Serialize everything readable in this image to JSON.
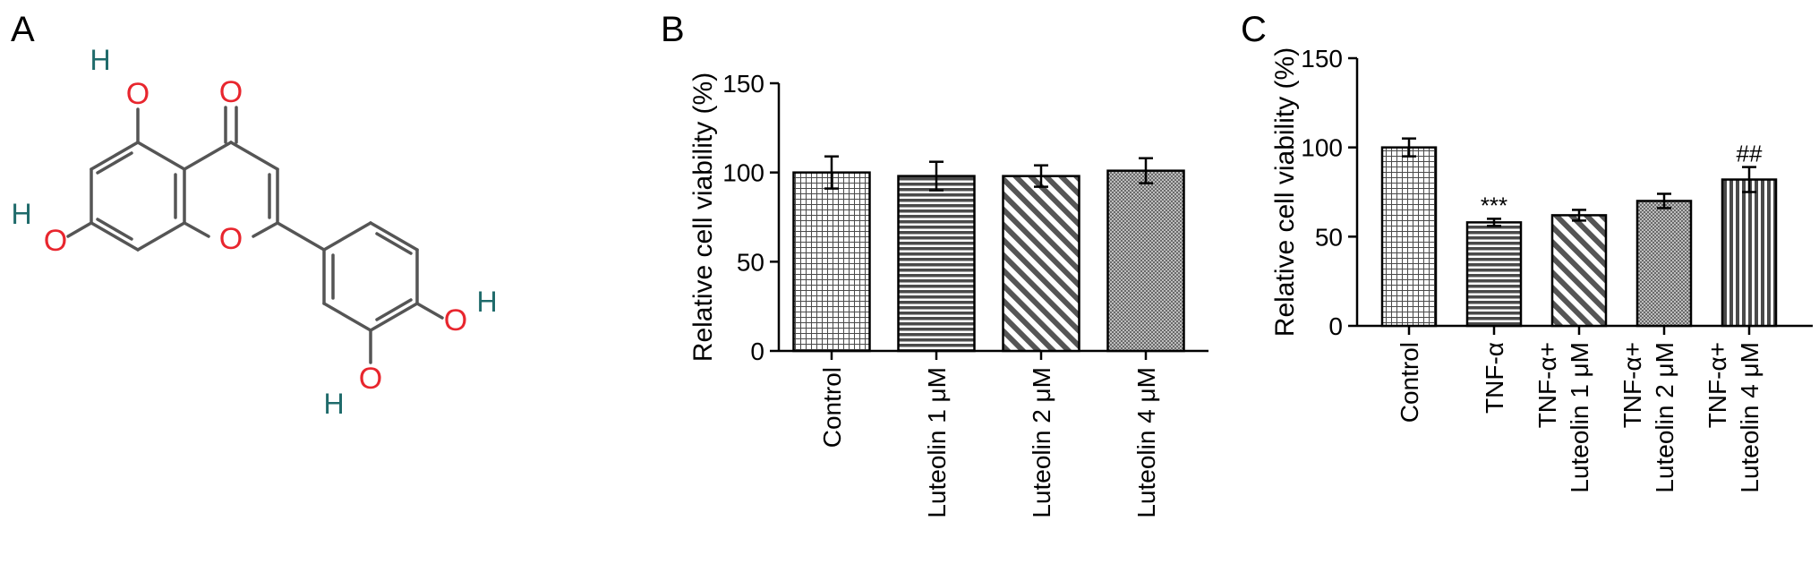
{
  "panels": {
    "a": {
      "letter": "A"
    },
    "b": {
      "letter": "B"
    },
    "c": {
      "letter": "C"
    }
  },
  "molecule": {
    "atoms": [
      {
        "element": "O",
        "symbol": "O"
      },
      {
        "element": "O",
        "symbol": "O"
      },
      {
        "element": "O",
        "symbol": "O"
      },
      {
        "element": "O",
        "symbol": "O"
      },
      {
        "element": "O",
        "symbol": "O"
      },
      {
        "element": "O",
        "symbol": "O"
      },
      {
        "element": "H",
        "symbol": "H"
      },
      {
        "element": "H",
        "symbol": "H"
      },
      {
        "element": "H",
        "symbol": "H"
      },
      {
        "element": "H",
        "symbol": "H"
      }
    ],
    "colors": {
      "oxygen": "#e8262e",
      "hydrogen": "#1f6b6b",
      "bond": "#555555"
    }
  },
  "chart_data": [
    {
      "panel": "B",
      "type": "bar",
      "ylabel": "Relative cell viability (%)",
      "xlabel": "",
      "ylim": [
        0,
        150
      ],
      "yticks": [
        "0",
        "50",
        "100",
        "150"
      ],
      "categories": [
        {
          "lines": [
            "Control"
          ]
        },
        {
          "lines": [
            "Luteolin 1 μM"
          ]
        },
        {
          "lines": [
            "Luteolin 2 μM"
          ]
        },
        {
          "lines": [
            "Luteolin 4 μM"
          ]
        }
      ],
      "values": [
        100,
        98,
        98,
        101
      ],
      "errors": [
        9,
        8,
        6,
        7
      ],
      "patterns": [
        "grid",
        "hstripe",
        "diag",
        "dots"
      ],
      "annotations": [
        "",
        "",
        "",
        ""
      ],
      "grid": false,
      "legend": "none"
    },
    {
      "panel": "C",
      "type": "bar",
      "ylabel": "Relative cell viability (%)",
      "xlabel": "",
      "ylim": [
        0,
        150
      ],
      "yticks": [
        "0",
        "50",
        "100",
        "150"
      ],
      "categories": [
        {
          "lines": [
            "Control"
          ]
        },
        {
          "lines": [
            "TNF-α"
          ]
        },
        {
          "lines": [
            "TNF-α+",
            "Luteolin 1 μM"
          ]
        },
        {
          "lines": [
            "TNF-α+",
            "Luteolin 2 μM"
          ]
        },
        {
          "lines": [
            "TNF-α+",
            "Luteolin 4 μM"
          ]
        }
      ],
      "values": [
        100,
        58,
        62,
        70,
        82
      ],
      "errors": [
        5,
        2,
        3,
        4,
        7
      ],
      "patterns": [
        "grid",
        "hstripe",
        "diag",
        "dots",
        "vstripe"
      ],
      "annotations": [
        "",
        "***",
        "",
        "",
        "##"
      ],
      "grid": false,
      "legend": "none"
    }
  ]
}
